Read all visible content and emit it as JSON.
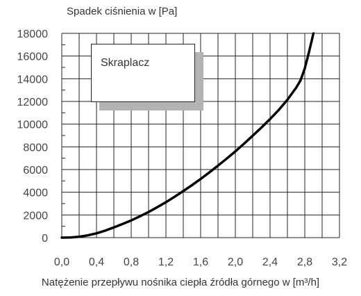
{
  "chart_data": {
    "type": "line",
    "title": "",
    "ylabel": "Spadek ciśnienia w [Pa]",
    "xlabel": "Natężenie przepływu nośnika ciepła źródła górnego w [m³/h]",
    "xlim": [
      0,
      3.2
    ],
    "ylim": [
      0,
      18000
    ],
    "x_ticks": [
      "0,0",
      "0,4",
      "0,8",
      "1,2",
      "1,6",
      "2,0",
      "2,4",
      "2,8",
      "3,2"
    ],
    "x_tick_values": [
      0,
      0.4,
      0.8,
      1.2,
      1.6,
      2.0,
      2.4,
      2.8,
      3.2
    ],
    "y_ticks": [
      "0",
      "2000",
      "4000",
      "6000",
      "8000",
      "10000",
      "12000",
      "14000",
      "16000",
      "18000"
    ],
    "y_tick_values": [
      0,
      2000,
      4000,
      6000,
      8000,
      10000,
      12000,
      14000,
      16000,
      18000
    ],
    "grid": true,
    "legend_position": "top-left",
    "series": [
      {
        "name": "Skraplacz",
        "color": "#000000",
        "x": [
          0.0,
          0.1,
          0.2,
          0.3,
          0.4,
          0.5,
          0.6,
          0.7,
          0.8,
          0.9,
          1.0,
          1.1,
          1.2,
          1.3,
          1.4,
          1.5,
          1.6,
          1.7,
          1.8,
          1.9,
          2.0,
          2.1,
          2.2,
          2.3,
          2.4,
          2.5,
          2.6,
          2.7,
          2.75,
          2.8,
          2.85,
          2.9
        ],
        "y": [
          0,
          20,
          80,
          200,
          380,
          620,
          900,
          1200,
          1520,
          1880,
          2260,
          2680,
          3120,
          3600,
          4100,
          4620,
          5170,
          5740,
          6340,
          6960,
          7600,
          8280,
          8980,
          9700,
          10450,
          11250,
          12150,
          13200,
          13850,
          14900,
          16400,
          18000
        ]
      }
    ]
  }
}
